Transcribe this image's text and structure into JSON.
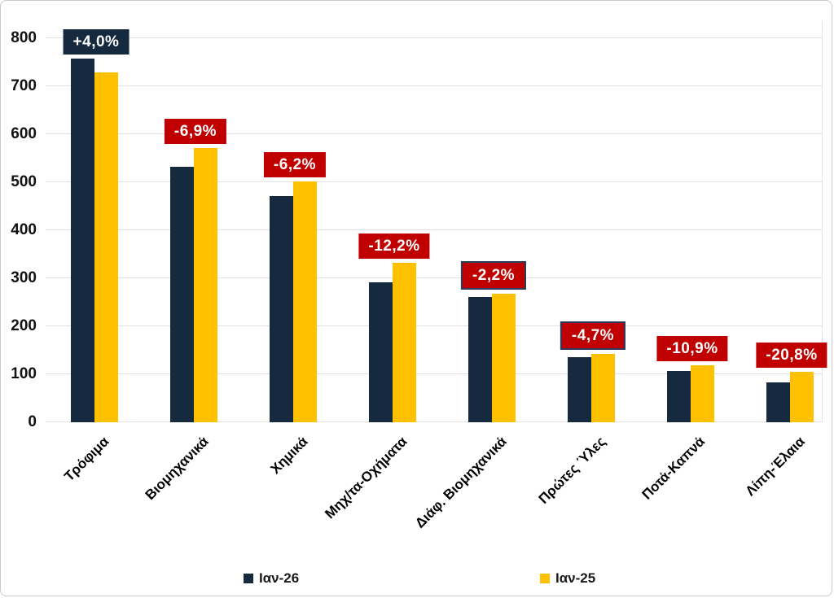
{
  "chart_data": {
    "type": "bar",
    "title": "",
    "xlabel": "",
    "ylabel": "",
    "categories": [
      "Τρόφιμα",
      "Βιομηχανικά",
      "Χημικά",
      "Μηχ/τα-Οχήματα",
      "Διάφ. Βιομηχανικά",
      "Πρώτες Ύλες",
      "Ποτά-Καπνά",
      "Λίπη-Έλαια"
    ],
    "series": [
      {
        "name": "Ιαν-26",
        "color": "#15293f",
        "values": [
          757,
          532,
          471,
          292,
          261,
          135,
          106,
          83
        ]
      },
      {
        "name": "Ιαν-25",
        "color": "#ffc000",
        "values": [
          728,
          571,
          502,
          332,
          267,
          142,
          119,
          105
        ]
      }
    ],
    "change_labels": [
      {
        "text": "+4,0%",
        "style": "navy",
        "bordered": false
      },
      {
        "text": "-6,9%",
        "style": "red",
        "bordered": false
      },
      {
        "text": "-6,2%",
        "style": "red",
        "bordered": false
      },
      {
        "text": "-12,2%",
        "style": "red",
        "bordered": false
      },
      {
        "text": "-2,2%",
        "style": "red",
        "bordered": true
      },
      {
        "text": "-4,7%",
        "style": "red",
        "bordered": true
      },
      {
        "text": "-10,9%",
        "style": "red",
        "bordered": false
      },
      {
        "text": "-20,8%",
        "style": "red",
        "bordered": false
      }
    ],
    "y_axis": {
      "min": 0,
      "max": 800,
      "step": 100,
      "ticks": [
        "0",
        "100",
        "200",
        "300",
        "400",
        "500",
        "600",
        "700",
        "800"
      ]
    },
    "grid": true,
    "legend_position": "bottom",
    "colors": {
      "navy": "#15293f",
      "gold": "#ffc000",
      "red": "#c00000",
      "badge_border": "#2c3a5c",
      "gridline": "#e2e2e2",
      "frame_border": "#c9c9c9"
    }
  }
}
